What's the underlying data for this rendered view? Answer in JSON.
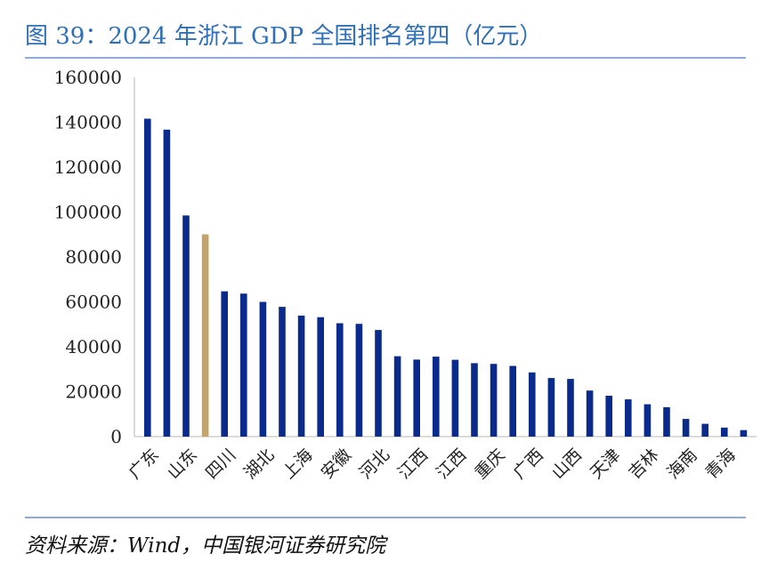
{
  "title": "图 39：2024 年浙江 GDP 全国排名第四（亿元）",
  "source": "资料来源：Wind，中国银河证券研究院",
  "colors": {
    "default_bar": "#0a2a8c",
    "highlight_bar": "#c4a46a",
    "title": "#2f6fb6"
  },
  "chart_data": {
    "type": "bar",
    "ylim": [
      0,
      160000
    ],
    "yticks": [
      0,
      20000,
      40000,
      60000,
      80000,
      100000,
      120000,
      140000,
      160000
    ],
    "grid": false,
    "legend": "none",
    "highlight_index": 3,
    "categories": [
      "广东",
      "",
      "山东",
      "",
      "四川",
      "",
      "湖北",
      "",
      "上海",
      "",
      "安徽",
      "",
      "河北",
      "",
      "江西",
      "",
      "江西",
      "",
      "重庆",
      "",
      "广西",
      "",
      "山西",
      "",
      "天津",
      "",
      "吉林",
      "",
      "海南",
      "",
      "青海",
      ""
    ],
    "values": [
      141600,
      136700,
      98500,
      90100,
      64700,
      63700,
      60000,
      57800,
      53900,
      53200,
      50500,
      50200,
      47500,
      35800,
      34300,
      35600,
      34200,
      32700,
      32400,
      31500,
      28600,
      26100,
      25700,
      20500,
      18200,
      16600,
      14400,
      13100,
      7900,
      5700,
      4000,
      2900
    ]
  }
}
